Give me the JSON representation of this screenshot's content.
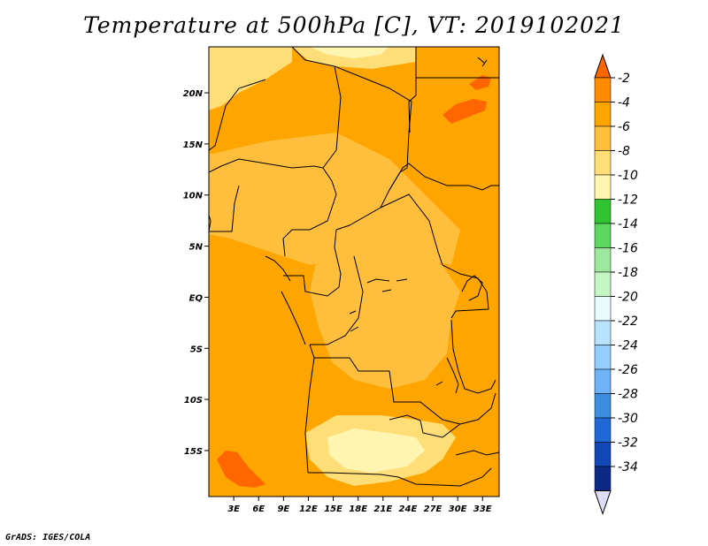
{
  "title": "Temperature at 500hPa [C], VT: 2019102021",
  "credit": "GrADS: IGES/COLA",
  "map": {
    "lat_range": [
      -19.5,
      24.5
    ],
    "lon_range": [
      0,
      35
    ],
    "lat_ticks": [
      {
        "value": 20,
        "label": "20N"
      },
      {
        "value": 15,
        "label": "15N"
      },
      {
        "value": 10,
        "label": "10N"
      },
      {
        "value": 5,
        "label": "5N"
      },
      {
        "value": 0,
        "label": "EQ"
      },
      {
        "value": -5,
        "label": "5S"
      },
      {
        "value": -10,
        "label": "10S"
      },
      {
        "value": -15,
        "label": "15S"
      }
    ],
    "lon_ticks": [
      {
        "value": 3,
        "label": "3E"
      },
      {
        "value": 6,
        "label": "6E"
      },
      {
        "value": 9,
        "label": "9E"
      },
      {
        "value": 12,
        "label": "12E"
      },
      {
        "value": 15,
        "label": "15E"
      },
      {
        "value": 18,
        "label": "18E"
      },
      {
        "value": 21,
        "label": "21E"
      },
      {
        "value": 24,
        "label": "24E"
      },
      {
        "value": 27,
        "label": "27E"
      },
      {
        "value": 30,
        "label": "30E"
      },
      {
        "value": 33,
        "label": "33E"
      }
    ]
  },
  "colorbar": {
    "labels": [
      "-2",
      "-4",
      "-6",
      "-8",
      "-10",
      "-12",
      "-14",
      "-16",
      "-18",
      "-20",
      "-22",
      "-24",
      "-26",
      "-28",
      "-30",
      "-32",
      "-34"
    ],
    "colors": [
      "#ff6600",
      "#ff8c00",
      "#ffa500",
      "#ffbf3d",
      "#ffdd77",
      "#fff5b0",
      "#31c331",
      "#5dd65d",
      "#9ee89e",
      "#c6f5c6",
      "#e8fbff",
      "#b8e3ff",
      "#96cdff",
      "#6fb2f5",
      "#3d8de0",
      "#1f68d5",
      "#1347b5",
      "#0c2a85",
      "#0c0c60",
      "#ddddf5"
    ]
  },
  "regions": [
    {
      "name": "western-ocean",
      "color": "#ffa500"
    },
    {
      "name": "central-basin",
      "color": "#ffbf3d"
    },
    {
      "name": "eastern-sector",
      "color": "#ffa500"
    },
    {
      "name": "sahel-belt",
      "color": "#ffbf3d"
    },
    {
      "name": "northwest-warm",
      "color": "#ffdd77"
    },
    {
      "name": "north-warm",
      "color": "#ffdd77"
    },
    {
      "name": "northern-pale",
      "color": "#fff5b0"
    },
    {
      "name": "southern-pale",
      "color": "#fff5b0"
    },
    {
      "name": "southern-warm",
      "color": "#ffdd77"
    },
    {
      "name": "sw-ocean-hot",
      "color": "#ff6600"
    },
    {
      "name": "ne-hot",
      "color": "#ff6600"
    },
    {
      "name": "ne-hot-2",
      "color": "#ff6600"
    }
  ]
}
